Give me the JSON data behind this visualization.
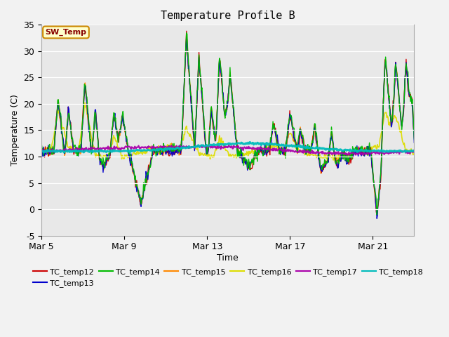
{
  "title": "Temperature Profile B",
  "xlabel": "Time",
  "ylabel": "Temperature (C)",
  "ylim": [
    -5,
    35
  ],
  "xlim": [
    0,
    18
  ],
  "fig_facecolor": "#f2f2f2",
  "ax_facecolor": "#e8e8e8",
  "sw_temp_label": "SW_Temp",
  "sw_temp_box_color": "#ffffcc",
  "sw_temp_border_color": "#cc8800",
  "sw_temp_text_color": "#880000",
  "x_ticks": [
    0,
    4,
    8,
    12,
    16
  ],
  "x_tick_labels": [
    "Mar 5",
    "Mar 9",
    "Mar 13",
    "Mar 17",
    "Mar 21"
  ],
  "y_ticks": [
    -5,
    0,
    5,
    10,
    15,
    20,
    25,
    30,
    35
  ],
  "series_order": [
    "TC_temp12",
    "TC_temp13",
    "TC_temp14",
    "TC_temp15",
    "TC_temp16",
    "TC_temp17",
    "TC_temp18"
  ],
  "series": {
    "TC_temp12": {
      "color": "#cc0000",
      "lw": 1.0
    },
    "TC_temp13": {
      "color": "#0000cc",
      "lw": 1.0
    },
    "TC_temp14": {
      "color": "#00bb00",
      "lw": 1.0
    },
    "TC_temp15": {
      "color": "#ff8800",
      "lw": 1.0
    },
    "TC_temp16": {
      "color": "#dddd00",
      "lw": 1.2
    },
    "TC_temp17": {
      "color": "#aa00aa",
      "lw": 1.5
    },
    "TC_temp18": {
      "color": "#00bbbb",
      "lw": 2.0
    }
  },
  "legend_ncol": 6,
  "legend_row2": [
    "TC_temp18"
  ]
}
